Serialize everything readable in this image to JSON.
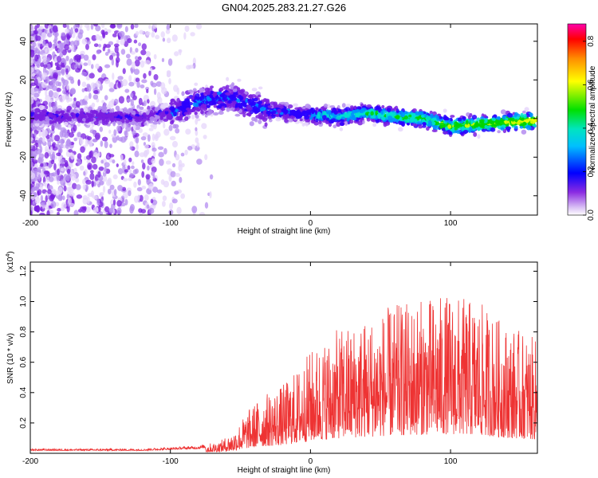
{
  "chart_data": [
    {
      "type": "heatmap",
      "title": "GN04.2025.283.21.27.G26",
      "xlabel": "Height of straight line (km)",
      "ylabel": "Frequency (Hz)",
      "xlim": [
        -200,
        162
      ],
      "ylim": [
        -50,
        49
      ],
      "xticks": [
        -200,
        -100,
        0,
        100
      ],
      "xtick_labels": [
        "-200",
        "-100",
        "0",
        "100"
      ],
      "yticks": [
        -40,
        -20,
        0,
        20,
        40
      ],
      "ytick_labels": [
        "-40",
        "-20",
        "0",
        "20",
        "40"
      ],
      "colorbar": {
        "label": "Normalized spectral amplitude",
        "range": [
          0,
          0.88
        ],
        "ticks": [
          0.0,
          0.2,
          0.4,
          0.6,
          0.8
        ],
        "tick_labels": [
          "0.0",
          "0.2",
          "0.4",
          "0.6",
          "0.8"
        ]
      },
      "ridge": {
        "description_points_x": [
          -200,
          -120,
          -100,
          -80,
          -70,
          -60,
          -50,
          -40,
          -30,
          0,
          20,
          40,
          60,
          80,
          100,
          120,
          140,
          162
        ],
        "description_points_y": [
          1,
          1,
          3,
          9,
          10,
          11,
          9,
          7,
          4,
          2,
          1,
          3,
          1,
          0,
          -4,
          -3,
          -2,
          -1
        ]
      }
    },
    {
      "type": "line",
      "xlabel": "Height of straight line (km)",
      "ylabel": "SNR (10 * v/v)",
      "y_multiplier": "(x10",
      "y_multiplier_exp": "4",
      "y_multiplier_close": ")",
      "xlim": [
        -200,
        162
      ],
      "ylim": [
        0,
        1.26
      ],
      "xticks": [
        -200,
        -100,
        0,
        100
      ],
      "xtick_labels": [
        "-200",
        "-100",
        "0",
        "100"
      ],
      "yticks": [
        0.2,
        0.4,
        0.6,
        0.8,
        1.0,
        1.2
      ],
      "ytick_labels": [
        "0.2",
        "0.4",
        "0.6",
        "0.8",
        "1.0",
        "1.2"
      ],
      "series": [
        {
          "name": "SNR",
          "color": "#ee3333",
          "envelope_x": [
            -200,
            -120,
            -80,
            -65,
            -55,
            -45,
            -35,
            -20,
            -10,
            0,
            20,
            40,
            60,
            80,
            100,
            120,
            140,
            162
          ],
          "envelope_y": [
            0.03,
            0.03,
            0.05,
            0.08,
            0.14,
            0.28,
            0.38,
            0.45,
            0.55,
            0.68,
            0.82,
            0.9,
            0.98,
            1.02,
            1.05,
            1.0,
            0.85,
            0.75
          ]
        }
      ]
    }
  ]
}
